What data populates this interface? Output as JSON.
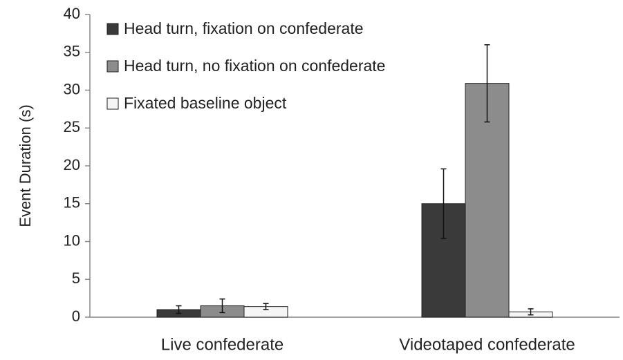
{
  "chart_data": {
    "type": "bar",
    "ylabel": "Event Duration (s)",
    "categories": [
      "Live confederate",
      "Videotaped confederate"
    ],
    "series": [
      {
        "name": "Head turn, fixation on confederate",
        "color": "#3a3a3a",
        "values": [
          1.0,
          15.0
        ],
        "errors": [
          0.5,
          4.6
        ]
      },
      {
        "name": "Head turn, no fixation on confederate",
        "color": "#8c8c8c",
        "values": [
          1.5,
          30.9
        ],
        "errors": [
          0.9,
          5.1
        ]
      },
      {
        "name": "Fixated baseline object",
        "color": "#f5f5f5",
        "values": [
          1.4,
          0.7
        ],
        "errors": [
          0.4,
          0.4
        ]
      }
    ],
    "ylim": [
      0,
      40
    ],
    "yticks": [
      0,
      5,
      10,
      15,
      20,
      25,
      30,
      35,
      40
    ],
    "grid": false,
    "legend": "upper left"
  }
}
